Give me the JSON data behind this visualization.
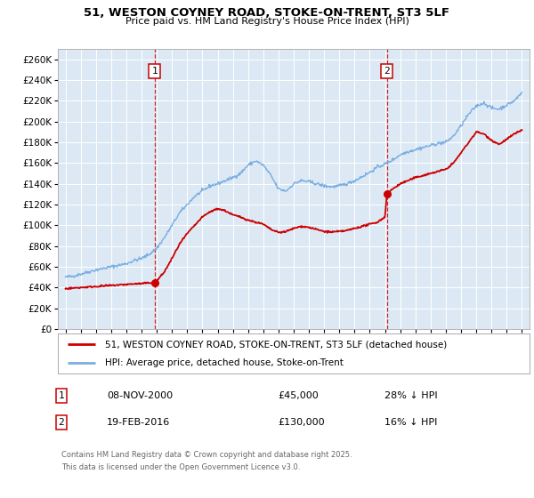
{
  "title": "51, WESTON COYNEY ROAD, STOKE-ON-TRENT, ST3 5LF",
  "subtitle": "Price paid vs. HM Land Registry's House Price Index (HPI)",
  "ylim": [
    0,
    270000
  ],
  "yticks": [
    0,
    20000,
    40000,
    60000,
    80000,
    100000,
    120000,
    140000,
    160000,
    180000,
    200000,
    220000,
    240000,
    260000
  ],
  "plot_bg_color": "#dce9f5",
  "red_line_color": "#cc0000",
  "blue_line_color": "#7aade0",
  "vline_color": "#cc0000",
  "purchase1": {
    "date_num": 2000.86,
    "price": 45000,
    "label": "1",
    "date_str": "08-NOV-2000",
    "pct": "28% ↓ HPI"
  },
  "purchase2": {
    "date_num": 2016.12,
    "price": 130000,
    "label": "2",
    "date_str": "19-FEB-2016",
    "pct": "16% ↓ HPI"
  },
  "legend1": "51, WESTON COYNEY ROAD, STOKE-ON-TRENT, ST3 5LF (detached house)",
  "legend2": "HPI: Average price, detached house, Stoke-on-Trent",
  "footer1": "Contains HM Land Registry data © Crown copyright and database right 2025.",
  "footer2": "This data is licensed under the Open Government Licence v3.0.",
  "xmin": 1994.5,
  "xmax": 2025.5,
  "hpi_ctrl": [
    [
      1995.0,
      50000
    ],
    [
      1995.5,
      51000
    ],
    [
      1996.0,
      53000
    ],
    [
      1996.5,
      55000
    ],
    [
      1997.0,
      57000
    ],
    [
      1997.5,
      58500
    ],
    [
      1998.0,
      60000
    ],
    [
      1998.5,
      61500
    ],
    [
      1999.0,
      63000
    ],
    [
      1999.5,
      66000
    ],
    [
      2000.0,
      68000
    ],
    [
      2000.5,
      72000
    ],
    [
      2001.0,
      78000
    ],
    [
      2001.5,
      88000
    ],
    [
      2002.0,
      100000
    ],
    [
      2002.5,
      112000
    ],
    [
      2003.0,
      120000
    ],
    [
      2003.5,
      128000
    ],
    [
      2004.0,
      133000
    ],
    [
      2004.5,
      138000
    ],
    [
      2005.0,
      140000
    ],
    [
      2005.5,
      143000
    ],
    [
      2006.0,
      146000
    ],
    [
      2006.5,
      150000
    ],
    [
      2007.0,
      158000
    ],
    [
      2007.5,
      162000
    ],
    [
      2008.0,
      158000
    ],
    [
      2008.5,
      148000
    ],
    [
      2009.0,
      135000
    ],
    [
      2009.5,
      133000
    ],
    [
      2010.0,
      140000
    ],
    [
      2010.5,
      143000
    ],
    [
      2011.0,
      142000
    ],
    [
      2011.5,
      140000
    ],
    [
      2012.0,
      138000
    ],
    [
      2012.5,
      137000
    ],
    [
      2013.0,
      138000
    ],
    [
      2013.5,
      140000
    ],
    [
      2014.0,
      143000
    ],
    [
      2014.5,
      147000
    ],
    [
      2015.0,
      151000
    ],
    [
      2015.5,
      156000
    ],
    [
      2016.0,
      159000
    ],
    [
      2016.5,
      163000
    ],
    [
      2017.0,
      168000
    ],
    [
      2017.5,
      171000
    ],
    [
      2018.0,
      173000
    ],
    [
      2018.5,
      175000
    ],
    [
      2019.0,
      177000
    ],
    [
      2019.5,
      179000
    ],
    [
      2020.0,
      180000
    ],
    [
      2020.5,
      186000
    ],
    [
      2021.0,
      196000
    ],
    [
      2021.5,
      207000
    ],
    [
      2022.0,
      215000
    ],
    [
      2022.5,
      218000
    ],
    [
      2023.0,
      213000
    ],
    [
      2023.5,
      212000
    ],
    [
      2024.0,
      216000
    ],
    [
      2024.5,
      220000
    ],
    [
      2025.0,
      228000
    ]
  ],
  "prop_ctrl": [
    [
      1995.0,
      39000
    ],
    [
      1995.5,
      39500
    ],
    [
      1996.0,
      40000
    ],
    [
      1996.5,
      40500
    ],
    [
      1997.0,
      41000
    ],
    [
      1997.5,
      41500
    ],
    [
      1998.0,
      42000
    ],
    [
      1998.5,
      42500
    ],
    [
      1999.0,
      43000
    ],
    [
      1999.5,
      43500
    ],
    [
      2000.0,
      43800
    ],
    [
      2000.86,
      45000
    ],
    [
      2001.0,
      46500
    ],
    [
      2001.5,
      55000
    ],
    [
      2002.0,
      68000
    ],
    [
      2002.5,
      82000
    ],
    [
      2003.0,
      92000
    ],
    [
      2003.5,
      100000
    ],
    [
      2004.0,
      108000
    ],
    [
      2004.5,
      113000
    ],
    [
      2005.0,
      116000
    ],
    [
      2005.5,
      114000
    ],
    [
      2006.0,
      110000
    ],
    [
      2006.5,
      108000
    ],
    [
      2007.0,
      105000
    ],
    [
      2007.5,
      103000
    ],
    [
      2008.0,
      101000
    ],
    [
      2008.5,
      96000
    ],
    [
      2009.0,
      93000
    ],
    [
      2009.5,
      94000
    ],
    [
      2010.0,
      97000
    ],
    [
      2010.5,
      99000
    ],
    [
      2011.0,
      98000
    ],
    [
      2011.5,
      96000
    ],
    [
      2012.0,
      94000
    ],
    [
      2012.5,
      93500
    ],
    [
      2013.0,
      94000
    ],
    [
      2013.5,
      95000
    ],
    [
      2014.0,
      97000
    ],
    [
      2014.5,
      99000
    ],
    [
      2015.0,
      101000
    ],
    [
      2015.5,
      103000
    ],
    [
      2016.0,
      108000
    ],
    [
      2016.12,
      130000
    ],
    [
      2016.5,
      135000
    ],
    [
      2017.0,
      140000
    ],
    [
      2017.5,
      143000
    ],
    [
      2018.0,
      146000
    ],
    [
      2018.5,
      148000
    ],
    [
      2019.0,
      150000
    ],
    [
      2019.5,
      152000
    ],
    [
      2020.0,
      154000
    ],
    [
      2020.5,
      160000
    ],
    [
      2021.0,
      170000
    ],
    [
      2021.5,
      180000
    ],
    [
      2022.0,
      190000
    ],
    [
      2022.5,
      188000
    ],
    [
      2023.0,
      182000
    ],
    [
      2023.5,
      178000
    ],
    [
      2024.0,
      183000
    ],
    [
      2024.5,
      188000
    ],
    [
      2025.0,
      192000
    ]
  ]
}
